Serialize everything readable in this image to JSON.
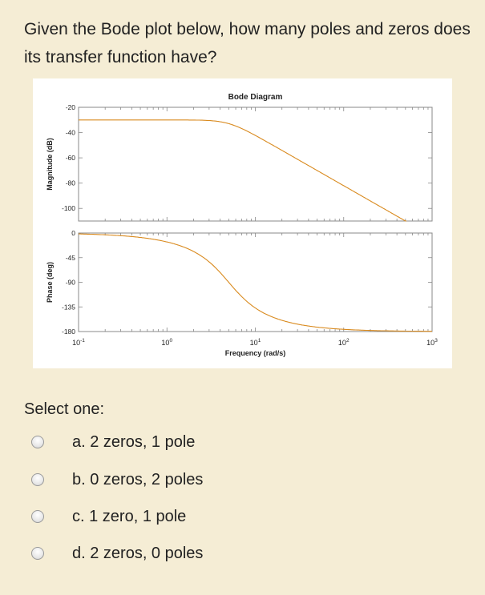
{
  "question": {
    "text": "Given the Bode plot below, how many poles and zeros does its transfer function have?"
  },
  "chart_data": {
    "type": "line",
    "title": "Bode Diagram",
    "xlabel": "Frequency  (rad/s)",
    "xscale": "log",
    "xlim": [
      0.1,
      1000
    ],
    "x_ticks": [
      "10^-1",
      "10^0",
      "10^1",
      "10^2",
      "10^3"
    ],
    "grid": false,
    "line_color": "#d98a1e",
    "subplots": [
      {
        "name": "magnitude",
        "ylabel": "Magnitude (dB)",
        "ylim": [
          -110,
          -20
        ],
        "y_ticks": [
          -20,
          -40,
          -60,
          -80,
          -100
        ],
        "x": [
          0.1,
          0.3,
          1,
          2,
          3,
          5,
          10,
          20,
          50,
          100,
          300,
          400
        ],
        "values": [
          -30,
          -30,
          -30.3,
          -31,
          -32.5,
          -36,
          -44,
          -55,
          -71,
          -83,
          -102,
          -110
        ]
      },
      {
        "name": "phase",
        "ylabel": "Phase (deg)",
        "ylim": [
          -180,
          0
        ],
        "y_ticks": [
          0,
          -45,
          -90,
          -135,
          -180
        ],
        "x": [
          0.1,
          0.3,
          1,
          2,
          3,
          5,
          10,
          20,
          50,
          100,
          300,
          1000
        ],
        "values": [
          -2,
          -6,
          -20,
          -38,
          -55,
          -90,
          -125,
          -150,
          -167,
          -173,
          -177,
          -179
        ]
      }
    ]
  },
  "chart_labels": {
    "title": "Bode Diagram",
    "mag_ylabel": "Magnitude (dB)",
    "phase_ylabel": "Phase (deg)",
    "xlabel": "Frequency  (rad/s)",
    "mag_ticks": [
      "-20",
      "-40",
      "-60",
      "-80",
      "-100"
    ],
    "phase_ticks": [
      "0",
      "-45",
      "-90",
      "-135",
      "-180"
    ],
    "x_ticks": [
      {
        "base": "10",
        "exp": "-1"
      },
      {
        "base": "10",
        "exp": "0"
      },
      {
        "base": "10",
        "exp": "1"
      },
      {
        "base": "10",
        "exp": "2"
      },
      {
        "base": "10",
        "exp": "3"
      }
    ]
  },
  "answers": {
    "prompt": "Select one:",
    "options": [
      {
        "label": "a. 2 zeros, 1 pole",
        "selected": false
      },
      {
        "label": "b. 0 zeros, 2 poles",
        "selected": false
      },
      {
        "label": "c. 1 zero, 1 pole",
        "selected": false
      },
      {
        "label": "d. 2 zeros, 0 poles",
        "selected": false
      }
    ]
  }
}
